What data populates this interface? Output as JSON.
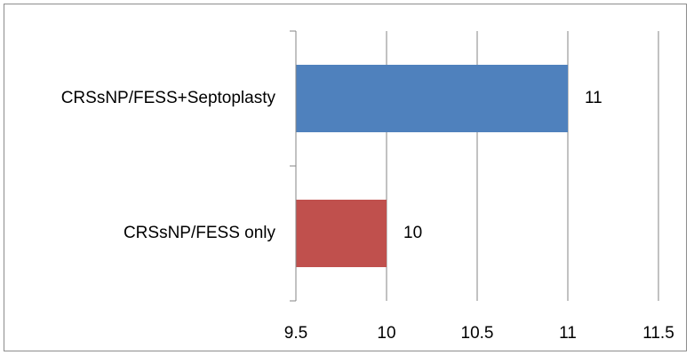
{
  "chart_data": {
    "type": "bar",
    "orientation": "horizontal",
    "categories": [
      "CRSsNP/FESS+Septoplasty",
      "CRSsNP/FESS only"
    ],
    "series": [
      {
        "values": [
          11,
          10
        ],
        "colors": [
          "#4f81bd",
          "#c0504d"
        ]
      }
    ],
    "data_labels": [
      "11",
      "10"
    ],
    "xlim": [
      9.5,
      11.5
    ],
    "x_ticks": [
      9.5,
      10,
      10.5,
      11,
      11.5
    ],
    "x_tick_labels": [
      "9.5",
      "10",
      "10.5",
      "11",
      "11.5"
    ],
    "grid": "vertical",
    "legend": "none"
  }
}
